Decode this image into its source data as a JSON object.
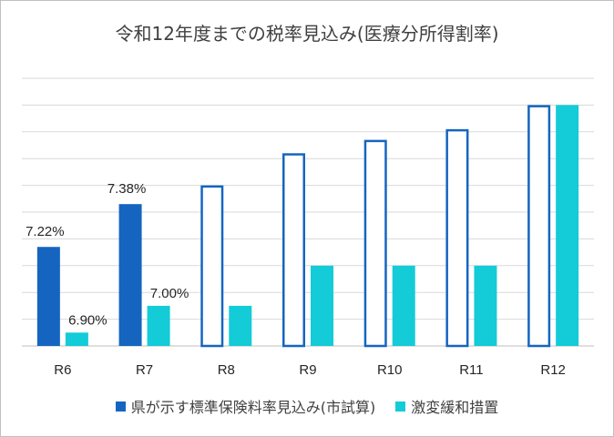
{
  "chart_data": {
    "type": "bar",
    "title": "令和12年度までの税率見込み(医療分所得割率)",
    "categories": [
      "R6",
      "R7",
      "R8",
      "R9",
      "R10",
      "R11",
      "R12"
    ],
    "series": [
      {
        "name": "県が示す標準保険料率見込み(市試算)",
        "color": "#1565c0",
        "values": [
          7.22,
          7.38,
          7.45,
          7.57,
          7.62,
          7.66,
          7.75
        ],
        "filled": [
          true,
          true,
          false,
          false,
          false,
          false,
          false
        ],
        "data_labels": [
          "7.22%",
          "7.38%",
          null,
          null,
          null,
          null,
          null
        ]
      },
      {
        "name": "激変緩和措置",
        "color": "#14cbd8",
        "values": [
          6.9,
          7.0,
          7.0,
          7.15,
          7.15,
          7.15,
          7.75
        ],
        "data_labels": [
          "6.90%",
          "7.00%",
          null,
          null,
          null,
          null,
          null
        ]
      }
    ],
    "ylim": [
      6.85,
      7.85
    ],
    "grid": true,
    "y_tick_labels_shown": false,
    "legend_position": "bottom"
  }
}
